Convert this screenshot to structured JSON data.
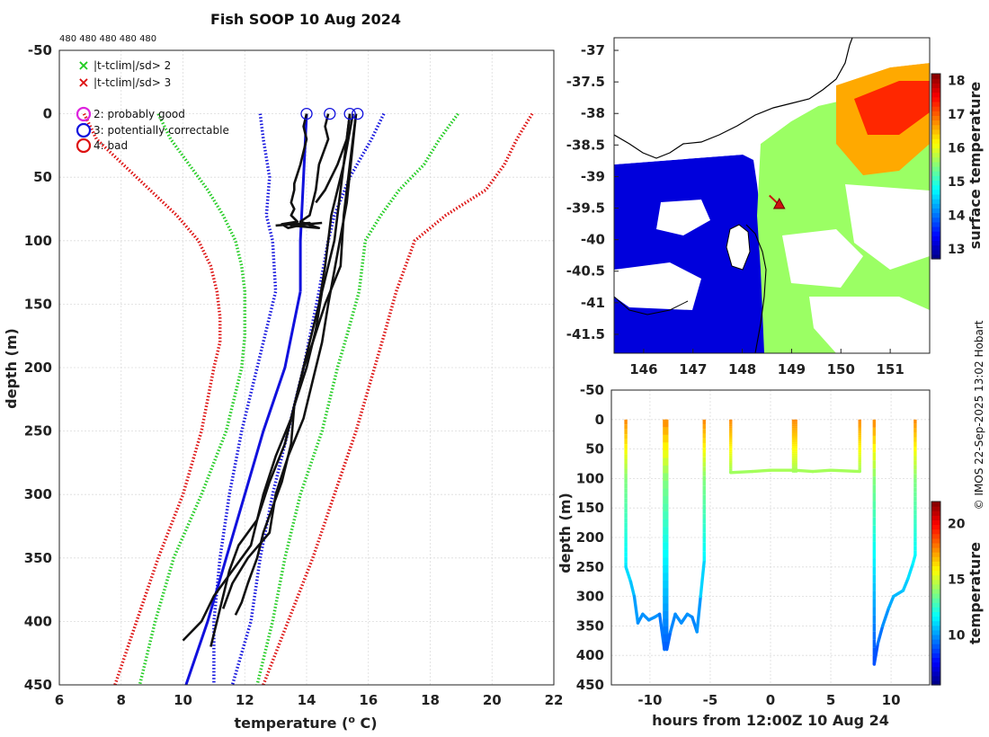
{
  "title": "Fish SOOP 10 Aug 2024",
  "sample_counts": "480 480 480 480 480",
  "credit": "© IMOS 22-Sep-2025 13:02 Hobart",
  "legend": [
    {
      "symbol": "×",
      "color": "#22cc22",
      "label": "|t-tclim|/sd> 2"
    },
    {
      "symbol": "×",
      "color": "#dd1111",
      "label": "|t-tclim|/sd> 3"
    },
    {
      "symbol": "○",
      "color": "#dd22dd",
      "label": "2: probably good"
    },
    {
      "symbol": "○",
      "color": "#1111dd",
      "label": "3: potentially correctable"
    },
    {
      "symbol": "○",
      "color": "#dd1111",
      "label": "4: bad"
    }
  ],
  "chart_data": [
    {
      "id": "profiles",
      "type": "line",
      "xlabel": "temperature (o C)",
      "ylabel": "depth (m)",
      "xlim": [
        6,
        22
      ],
      "ylim": [
        -50,
        450
      ],
      "y_reversed": true,
      "xticks": [
        6,
        8,
        10,
        12,
        14,
        16,
        18,
        20,
        22
      ],
      "yticks": [
        -50,
        0,
        50,
        100,
        150,
        200,
        250,
        300,
        350,
        400,
        450
      ],
      "series": [
        {
          "name": "climatology",
          "color": "#1111dd",
          "style": "solid",
          "depth": [
            0,
            50,
            100,
            140
          ],
          "temp": [
            14.0,
            13.9,
            13.8,
            13.8
          ]
        },
        {
          "name": "climatology",
          "color": "#1111dd",
          "style": "solid",
          "depth": [
            140,
            200,
            250,
            300,
            350,
            400,
            450
          ],
          "temp": [
            13.8,
            13.3,
            12.6,
            12.0,
            11.4,
            10.8,
            10.1
          ]
        },
        {
          "name": "clim -1sd",
          "color": "#1111dd",
          "style": "dotted",
          "depth": [
            0,
            20,
            50,
            80,
            100,
            140,
            200,
            250,
            300,
            350,
            400,
            450
          ],
          "temp": [
            12.5,
            12.6,
            12.8,
            12.7,
            12.9,
            13.0,
            12.4,
            11.9,
            11.5,
            11.2,
            11.0,
            11.0
          ]
        },
        {
          "name": "clim +1sd",
          "color": "#1111dd",
          "style": "dotted",
          "depth": [
            0,
            20,
            50,
            80,
            100,
            140,
            200,
            250,
            300,
            350,
            400,
            450
          ],
          "temp": [
            16.5,
            16.1,
            15.4,
            14.9,
            14.7,
            14.4,
            13.9,
            13.4,
            12.9,
            12.5,
            12.2,
            11.6
          ]
        },
        {
          "name": "clim -2sd",
          "color": "#22cc22",
          "style": "dotted",
          "depth": [
            0,
            20,
            40,
            60,
            80,
            100,
            120,
            140,
            175,
            200,
            250,
            300,
            350,
            400,
            450
          ],
          "temp": [
            9.2,
            9.6,
            10.2,
            10.8,
            11.3,
            11.7,
            11.9,
            12.0,
            12.0,
            11.9,
            11.4,
            10.6,
            9.7,
            9.1,
            8.6
          ]
        },
        {
          "name": "clim +2sd",
          "color": "#22cc22",
          "style": "dotted",
          "depth": [
            0,
            20,
            40,
            60,
            80,
            100,
            140,
            175,
            200,
            250,
            300,
            350,
            400,
            450
          ],
          "temp": [
            18.9,
            18.3,
            17.8,
            17.0,
            16.4,
            15.9,
            15.7,
            15.3,
            15.0,
            14.5,
            13.8,
            13.3,
            12.9,
            12.4
          ]
        },
        {
          "name": "clim -3sd",
          "color": "#dd1111",
          "style": "dotted",
          "depth": [
            0,
            20,
            50,
            80,
            100,
            120,
            140,
            160,
            180,
            200,
            250,
            300,
            350,
            400,
            450
          ],
          "temp": [
            6.8,
            7.2,
            8.5,
            9.8,
            10.5,
            10.9,
            11.1,
            11.2,
            11.2,
            11.0,
            10.6,
            10.0,
            9.2,
            8.5,
            7.8
          ]
        },
        {
          "name": "clim +3sd",
          "color": "#dd1111",
          "style": "dotted",
          "depth": [
            0,
            20,
            40,
            60,
            80,
            100,
            140,
            175,
            200,
            250,
            300,
            350,
            400,
            450
          ],
          "temp": [
            21.3,
            20.8,
            20.4,
            19.8,
            18.5,
            17.5,
            16.9,
            16.5,
            16.2,
            15.6,
            14.9,
            14.2,
            13.4,
            12.6
          ]
        },
        {
          "name": "profile",
          "color": "#111111",
          "style": "solid",
          "depth": [
            0,
            10,
            20,
            40,
            55,
            60,
            70,
            75,
            80,
            85,
            87,
            90,
            86,
            88
          ],
          "temp": [
            14.0,
            13.9,
            14.0,
            13.8,
            13.6,
            13.6,
            13.5,
            13.6,
            13.5,
            13.7,
            13.2,
            13.4,
            14.1,
            13.0
          ]
        },
        {
          "name": "profile",
          "color": "#111111",
          "style": "solid",
          "depth": [
            0,
            10,
            20,
            40,
            60,
            70,
            80,
            85,
            90,
            88,
            86
          ],
          "temp": [
            14.7,
            14.6,
            14.7,
            14.4,
            14.3,
            14.2,
            14.1,
            13.8,
            14.4,
            13.5,
            14.5
          ]
        },
        {
          "name": "profile",
          "color": "#111111",
          "style": "solid",
          "depth": [
            0,
            20,
            40,
            60,
            70
          ],
          "temp": [
            15.4,
            15.3,
            15.0,
            14.6,
            14.3
          ]
        },
        {
          "name": "profile",
          "color": "#111111",
          "style": "solid",
          "depth": [
            0,
            40,
            80,
            120,
            150,
            180,
            200,
            230,
            260,
            290,
            310,
            330,
            350,
            370,
            385,
            395
          ],
          "temp": [
            15.6,
            15.4,
            15.2,
            15.1,
            14.6,
            14.2,
            13.9,
            13.6,
            13.5,
            13.2,
            12.9,
            12.6,
            12.4,
            12.1,
            11.9,
            11.7
          ]
        },
        {
          "name": "profile",
          "color": "#111111",
          "style": "solid",
          "depth": [
            0,
            40,
            80,
            120,
            150,
            180,
            210,
            240,
            270,
            300,
            320,
            340,
            360,
            380,
            400,
            420
          ],
          "temp": [
            15.5,
            15.2,
            14.8,
            14.6,
            14.4,
            14.1,
            13.8,
            13.5,
            13.0,
            12.6,
            12.4,
            11.8,
            11.5,
            11.3,
            11.1,
            10.9
          ]
        },
        {
          "name": "profile",
          "color": "#111111",
          "style": "solid",
          "depth": [
            0,
            60,
            100,
            140,
            170,
            200,
            230,
            260,
            290,
            320,
            340,
            360,
            380,
            400,
            415
          ],
          "temp": [
            15.4,
            15.1,
            14.9,
            14.5,
            14.3,
            14.0,
            13.6,
            13.3,
            12.8,
            12.4,
            12.2,
            11.6,
            11.0,
            10.6,
            10.0
          ]
        },
        {
          "name": "profile",
          "color": "#111111",
          "style": "solid",
          "depth": [
            0,
            70,
            110,
            150,
            180,
            210,
            240,
            270,
            300,
            330,
            350,
            370,
            390
          ],
          "temp": [
            15.6,
            15.3,
            15.0,
            14.7,
            14.5,
            14.2,
            13.9,
            13.4,
            13.0,
            12.8,
            12.1,
            11.6,
            11.3
          ]
        }
      ],
      "markers": [
        {
          "temp": 14.0,
          "depth": 0
        },
        {
          "temp": 14.75,
          "depth": 0
        },
        {
          "temp": 15.4,
          "depth": 0
        },
        {
          "temp": 15.65,
          "depth": 0
        }
      ]
    },
    {
      "id": "sst-map",
      "type": "heatmap",
      "colorbar_label": "surface temperature",
      "clim": [
        12.7,
        18.2
      ],
      "colorbar_ticks": [
        13,
        14,
        15,
        16,
        17,
        18
      ],
      "xlim": [
        145.4,
        151.8
      ],
      "ylim": [
        -41.8,
        -36.8
      ],
      "xticks": [
        146,
        147,
        148,
        149,
        150,
        151
      ],
      "yticks": [
        -37,
        -37.5,
        -38,
        -38.5,
        -39,
        -39.5,
        -40,
        -40.5,
        -41,
        -41.5
      ],
      "xticklabels": [
        "146",
        "147",
        "148",
        "149",
        "150",
        "151"
      ],
      "yticklabels": [
        "-37",
        "-37.5",
        "-38",
        "-38.5",
        "-39",
        "-39.5",
        "-40",
        "-40.5",
        "-41",
        "-41.5"
      ],
      "track": [
        {
          "lon": 148.75,
          "lat": -39.45
        },
        {
          "lon": 148.55,
          "lat": -39.3
        }
      ]
    },
    {
      "id": "depth-time",
      "type": "scatter",
      "xlabel": "hours from 12:00Z 10 Aug 24",
      "ylabel": "depth (m)",
      "colorbar_label": "temperature",
      "clim": [
        5.5,
        22
      ],
      "colorbar_ticks": [
        10,
        15,
        20
      ],
      "xlim": [
        -13.2,
        13.2
      ],
      "ylim": [
        -50,
        450
      ],
      "y_reversed": true,
      "xticks": [
        -10,
        -5,
        0,
        5,
        10
      ],
      "yticks": [
        -50,
        0,
        50,
        100,
        150,
        200,
        250,
        300,
        350,
        400,
        450
      ],
      "casts": [
        {
          "x_start": -12.0,
          "x_end": -12.0,
          "max_depth": 360,
          "bottom": [
            [
              -12.0,
              250
            ],
            [
              -11.6,
              275
            ],
            [
              -11.3,
              300
            ],
            [
              -11.0,
              345
            ],
            [
              -10.6,
              330
            ],
            [
              -10.1,
              340
            ],
            [
              -9.6,
              335
            ],
            [
              -9.2,
              330
            ],
            [
              -8.8,
              390
            ]
          ]
        },
        {
          "x_start": -8.6,
          "x_end": -5.3,
          "max_depth": 360,
          "bottom": [
            [
              -8.6,
              390
            ],
            [
              -8.3,
              360
            ],
            [
              -7.9,
              330
            ],
            [
              -7.4,
              345
            ],
            [
              -6.9,
              330
            ],
            [
              -6.5,
              335
            ],
            [
              -6.1,
              360
            ],
            [
              -5.8,
              300
            ],
            [
              -5.5,
              240
            ]
          ]
        },
        {
          "x_start": -3.3,
          "x_end": 7.5,
          "max_depth": 90,
          "bottom": [
            [
              -3.3,
              90
            ],
            [
              -1.5,
              88
            ],
            [
              0,
              86
            ],
            [
              2.0,
              86
            ],
            [
              3.5,
              88
            ],
            [
              5,
              86
            ],
            [
              7.4,
              88
            ]
          ]
        },
        {
          "x_start": 8.6,
          "x_end": 12.0,
          "max_depth": 415,
          "bottom": [
            [
              8.6,
              415
            ],
            [
              8.9,
              380
            ],
            [
              9.3,
              350
            ],
            [
              9.8,
              320
            ],
            [
              10.2,
              300
            ],
            [
              10.6,
              295
            ],
            [
              11.0,
              290
            ],
            [
              11.4,
              270
            ],
            [
              11.8,
              245
            ],
            [
              12.0,
              230
            ]
          ]
        }
      ]
    }
  ]
}
